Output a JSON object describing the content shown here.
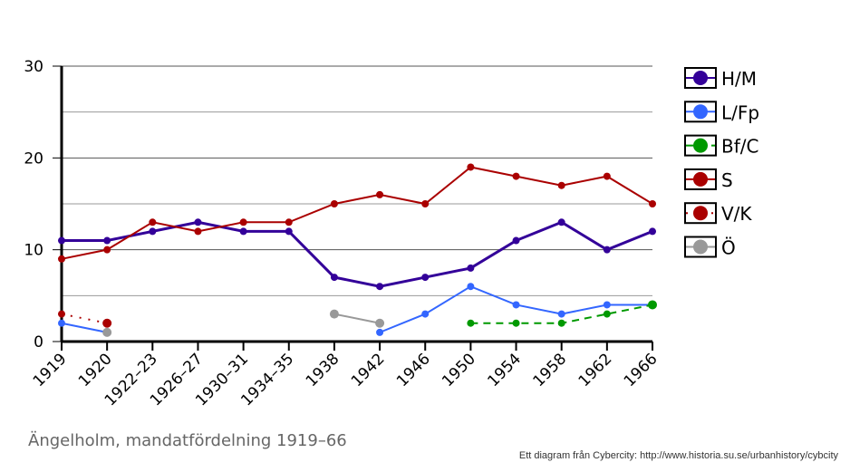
{
  "chart_data": {
    "type": "line",
    "title": "Ängelholm, mandatfördelning 1919–66",
    "credit": "Ett diagram från Cybercity: http://www.historia.su.se/urbanhistory/cybcity",
    "categories": [
      "1919",
      "1920",
      "1922–23",
      "1926–27",
      "1930–31",
      "1934–35",
      "1938",
      "1942",
      "1946",
      "1950",
      "1954",
      "1958",
      "1962",
      "1966"
    ],
    "ylim": [
      0,
      30
    ],
    "yticks": [
      0,
      10,
      20,
      30
    ],
    "grid": true,
    "legend_position": "right",
    "series": [
      {
        "name": "H/M",
        "color": "#330099",
        "style": "solid",
        "width": 3,
        "values": [
          11,
          11,
          12,
          13,
          12,
          12,
          7,
          6,
          7,
          8,
          11,
          13,
          10,
          12
        ]
      },
      {
        "name": "L/Fp",
        "color": "#3366ff",
        "style": "solid",
        "width": 2,
        "values": [
          2,
          1,
          null,
          null,
          null,
          null,
          null,
          1,
          3,
          6,
          4,
          3,
          4,
          4
        ]
      },
      {
        "name": "Bf/C",
        "color": "#009900",
        "style": "dashed",
        "width": 2,
        "values": [
          null,
          null,
          null,
          null,
          null,
          null,
          null,
          null,
          null,
          2,
          2,
          2,
          3,
          4
        ]
      },
      {
        "name": "S",
        "color": "#aa0000",
        "style": "solid",
        "width": 2,
        "values": [
          9,
          10,
          13,
          12,
          13,
          13,
          15,
          16,
          15,
          19,
          18,
          17,
          18,
          15
        ]
      },
      {
        "name": "V/K",
        "color": "#aa0000",
        "style": "dotted",
        "width": 2,
        "values": [
          3,
          2,
          null,
          null,
          null,
          null,
          null,
          null,
          null,
          null,
          null,
          null,
          null,
          null
        ]
      },
      {
        "name": "Ö",
        "color": "#999999",
        "style": "solid",
        "width": 2,
        "values": [
          null,
          1,
          null,
          null,
          null,
          null,
          3,
          2,
          null,
          null,
          null,
          null,
          null,
          null
        ]
      }
    ]
  }
}
